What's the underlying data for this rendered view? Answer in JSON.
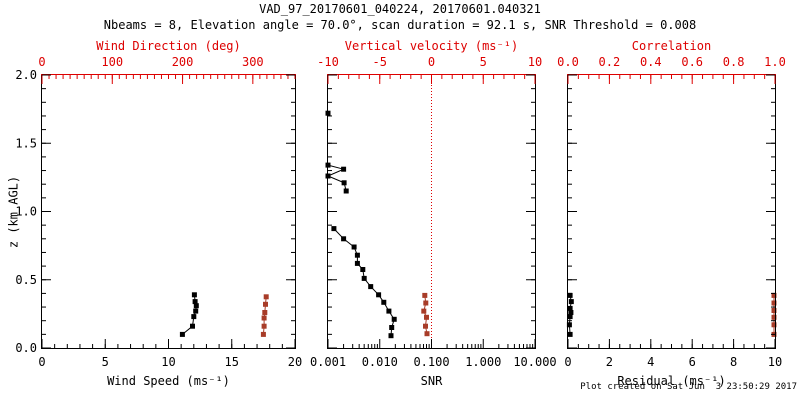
{
  "title": "VAD_97_20170601_040224, 20170601.040321",
  "subtitle": "Nbeams = 8, Elevation angle = 70.0°, scan duration = 92.1 s, SNR Threshold = 0.008",
  "footer": "Plot created on Sat Jun  3 23:50:29 2017",
  "ylabel": "z (km AGL)",
  "colors": {
    "background": "#ffffff",
    "frame_black": "#000000",
    "red_axis": "#dd0000",
    "red_series": "#a83c28",
    "black_series": "#000000"
  },
  "chart_data": [
    {
      "type": "line",
      "name": "wind-panel",
      "xlabel": "Wind Speed (ms⁻¹)",
      "xlabel_top": "Wind Direction (deg)",
      "ylabel": "z (km AGL)",
      "ylim": [
        0,
        2
      ],
      "y_ticks": [
        0,
        0.5,
        1,
        1.5,
        2
      ],
      "y_tick_labels": [
        "0.0",
        "0.5",
        "1.0",
        "1.5",
        "2.0"
      ],
      "y_minor_step": 0.1,
      "x_bottom": {
        "min": 0,
        "max": 20,
        "ticks": [
          0,
          5,
          10,
          15,
          20
        ],
        "labels": [
          "0",
          "5",
          "10",
          "15",
          "20"
        ],
        "minor_step": 1
      },
      "x_top": {
        "min": 0,
        "max": 360,
        "ticks": [
          0,
          100,
          200,
          300
        ],
        "labels": [
          "0",
          "100",
          "200",
          "300"
        ],
        "minor_step": 10
      },
      "series": [
        {
          "name": "wind-speed",
          "axis": "bottom",
          "color": "black",
          "marker": "square",
          "points": [
            [
              11.1,
              0.1
            ],
            [
              11.9,
              0.16
            ],
            [
              12.0,
              0.23
            ],
            [
              12.15,
              0.27
            ],
            [
              12.2,
              0.31
            ],
            [
              12.1,
              0.34
            ],
            [
              12.05,
              0.39
            ]
          ]
        },
        {
          "name": "wind-direction",
          "axis": "top",
          "color": "red",
          "marker": "square",
          "points": [
            [
              315,
              0.1
            ],
            [
              316,
              0.16
            ],
            [
              316,
              0.22
            ],
            [
              317,
              0.26
            ],
            [
              318,
              0.32
            ],
            [
              319,
              0.375
            ]
          ]
        }
      ]
    },
    {
      "type": "line",
      "name": "snr-panel",
      "xlabel": "SNR",
      "xlabel_top": "Vertical velocity (ms⁻¹)",
      "ylim": [
        0,
        2
      ],
      "y_ticks": [
        0,
        0.5,
        1,
        1.5,
        2
      ],
      "y_minor_step": 0.1,
      "x_bottom": {
        "scale": "log",
        "min": 0.001,
        "max": 10,
        "ticks": [
          0.001,
          0.01,
          0.1,
          1,
          10
        ],
        "labels": [
          "0.001",
          "0.010",
          "0.100",
          "1.000",
          "10.000"
        ]
      },
      "x_top": {
        "min": -10,
        "max": 10,
        "ticks": [
          -10,
          -5,
          0,
          5,
          10
        ],
        "labels": [
          "-10",
          "-5",
          "0",
          "5",
          "10"
        ],
        "minor_step": 1
      },
      "refline": {
        "axis": "top",
        "value": 0,
        "color": "red",
        "style": "dotted"
      },
      "series": [
        {
          "name": "snr",
          "axis": "bottom",
          "color": "black",
          "marker": "square",
          "segments": [
            [
              [
                0.001,
                1.72
              ]
            ],
            [
              [
                0.001,
                1.34
              ],
              [
                0.002,
                1.31
              ],
              [
                0.001,
                1.26
              ],
              [
                0.00205,
                1.21
              ],
              [
                0.00225,
                1.15
              ]
            ],
            [
              [
                0.0013,
                0.875
              ],
              [
                0.002,
                0.8
              ],
              [
                0.0032,
                0.74
              ],
              [
                0.0037,
                0.68
              ],
              [
                0.0037,
                0.62
              ],
              [
                0.0047,
                0.575
              ],
              [
                0.005,
                0.51
              ],
              [
                0.0067,
                0.45
              ],
              [
                0.0095,
                0.39
              ],
              [
                0.012,
                0.335
              ],
              [
                0.015,
                0.27
              ],
              [
                0.019,
                0.21
              ],
              [
                0.017,
                0.15
              ],
              [
                0.0165,
                0.09
              ]
            ]
          ]
        },
        {
          "name": "vertical-velocity",
          "axis": "top",
          "color": "red",
          "marker": "square",
          "points": [
            [
              -0.65,
              0.385
            ],
            [
              -0.55,
              0.33
            ],
            [
              -0.74,
              0.27
            ],
            [
              -0.48,
              0.225
            ],
            [
              -0.58,
              0.16
            ],
            [
              -0.43,
              0.105
            ]
          ]
        }
      ]
    },
    {
      "type": "line",
      "name": "residual-panel",
      "xlabel": "Residual (ms⁻¹)",
      "xlabel_top": "Correlation",
      "ylim": [
        0,
        2
      ],
      "y_ticks": [
        0,
        0.5,
        1,
        1.5,
        2
      ],
      "y_minor_step": 0.1,
      "x_bottom": {
        "min": 0,
        "max": 10,
        "ticks": [
          0,
          2,
          4,
          6,
          8,
          10
        ],
        "labels": [
          "0",
          "2",
          "4",
          "6",
          "8",
          "10"
        ],
        "minor_step": 0.5
      },
      "x_top": {
        "min": 0,
        "max": 1,
        "ticks": [
          0,
          0.2,
          0.4,
          0.6,
          0.8,
          1
        ],
        "labels": [
          "0.0",
          "0.2",
          "0.4",
          "0.6",
          "0.8",
          "1.0"
        ],
        "minor_step": 0.05
      },
      "series": [
        {
          "name": "residual",
          "axis": "bottom",
          "color": "black",
          "marker": "square",
          "points": [
            [
              0.1,
              0.385
            ],
            [
              0.16,
              0.34
            ],
            [
              0.1,
              0.29
            ],
            [
              0.14,
              0.26
            ],
            [
              0.1,
              0.23
            ],
            [
              0.07,
              0.17
            ],
            [
              0.1,
              0.1
            ]
          ]
        },
        {
          "name": "correlation",
          "axis": "top",
          "color": "red",
          "marker": "square",
          "points": [
            [
              0.995,
              0.385
            ],
            [
              0.995,
              0.33
            ],
            [
              0.995,
              0.275
            ],
            [
              0.995,
              0.225
            ],
            [
              0.995,
              0.17
            ],
            [
              0.995,
              0.1
            ]
          ]
        }
      ]
    }
  ]
}
